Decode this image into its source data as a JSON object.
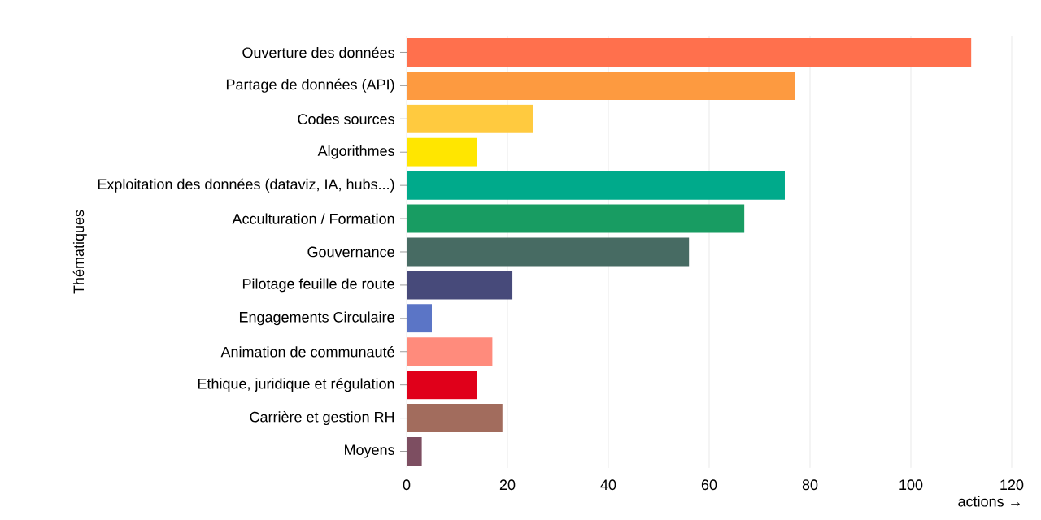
{
  "chart_data": {
    "type": "bar",
    "orientation": "horizontal",
    "xlabel": "actions →",
    "ylabel": "Thématiques",
    "categories": [
      "Ouverture des données",
      "Partage de données (API)",
      "Codes sources",
      "Algorithmes",
      "Exploitation des données (dataviz, IA, hubs...)",
      "Acculturation / Formation",
      "Gouvernance",
      "Pilotage feuille de route",
      "Engagements Circulaire",
      "Animation de communauté",
      "Ethique, juridique et régulation",
      "Carrière et gestion RH",
      "Moyens"
    ],
    "values": [
      112,
      77,
      25,
      14,
      75,
      67,
      56,
      21,
      5,
      17,
      14,
      19,
      3
    ],
    "colors": [
      "#ff704d",
      "#fd9a40",
      "#ffca3f",
      "#ffe600",
      "#00aa8b",
      "#189c62",
      "#476b63",
      "#474a7a",
      "#5b75c6",
      "#ff8b7c",
      "#e0001a",
      "#a26c5d",
      "#7d4e61"
    ],
    "xlim": [
      0,
      120
    ],
    "xticks": [
      0,
      20,
      40,
      60,
      80,
      100,
      120
    ],
    "grid": "x"
  }
}
